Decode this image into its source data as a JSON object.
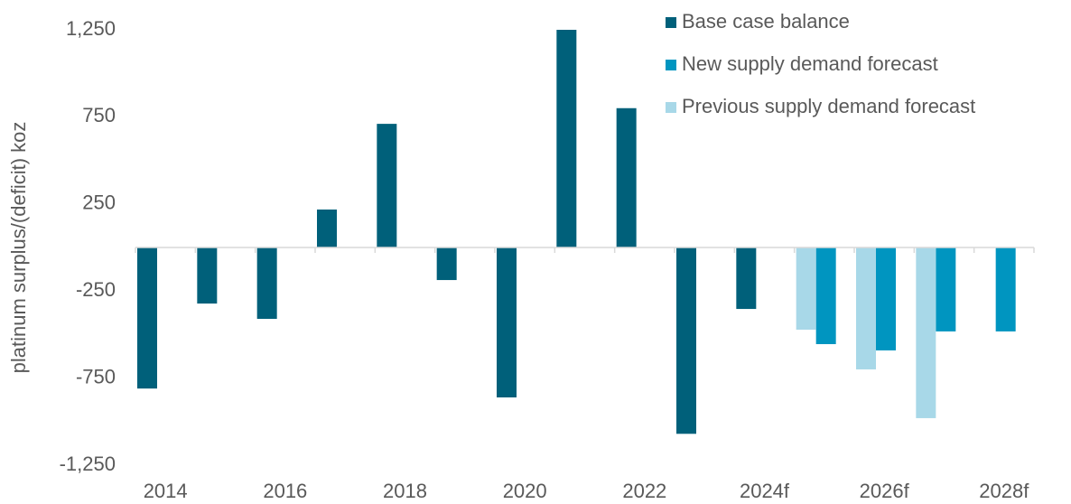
{
  "chart_data": {
    "type": "bar",
    "y_label": "platinum surplus/(deficit) koz",
    "categories": [
      "2014",
      null,
      "2016",
      null,
      "2018",
      null,
      "2020",
      null,
      "2022",
      null,
      "2024f",
      null,
      "2026f",
      null,
      "2028f"
    ],
    "series": [
      {
        "name": "Base case balance",
        "color": "#00607a",
        "values": [
          -810,
          -322,
          -410,
          218,
          710,
          -187,
          -861,
          1250,
          800,
          -1070,
          -353,
          null,
          null,
          null,
          null
        ]
      },
      {
        "name": "New supply demand forecast",
        "color": "#0095c0",
        "values": [
          null,
          null,
          null,
          null,
          null,
          null,
          null,
          null,
          null,
          null,
          null,
          -555,
          -591,
          -482,
          -482
        ]
      },
      {
        "name": "Previous supply demand forecast",
        "color": "#a8d8e8",
        "values": [
          null,
          null,
          null,
          null,
          null,
          null,
          null,
          null,
          null,
          null,
          null,
          -472,
          -700,
          -980,
          null
        ]
      }
    ],
    "ylim": [
      -1250,
      1250
    ],
    "yticks": [
      {
        "value": -1250,
        "label": "-1,250"
      },
      -750,
      -250,
      250,
      750,
      {
        "value": 1250,
        "label": "1,250"
      }
    ],
    "grid": false,
    "legend": "top-right"
  }
}
